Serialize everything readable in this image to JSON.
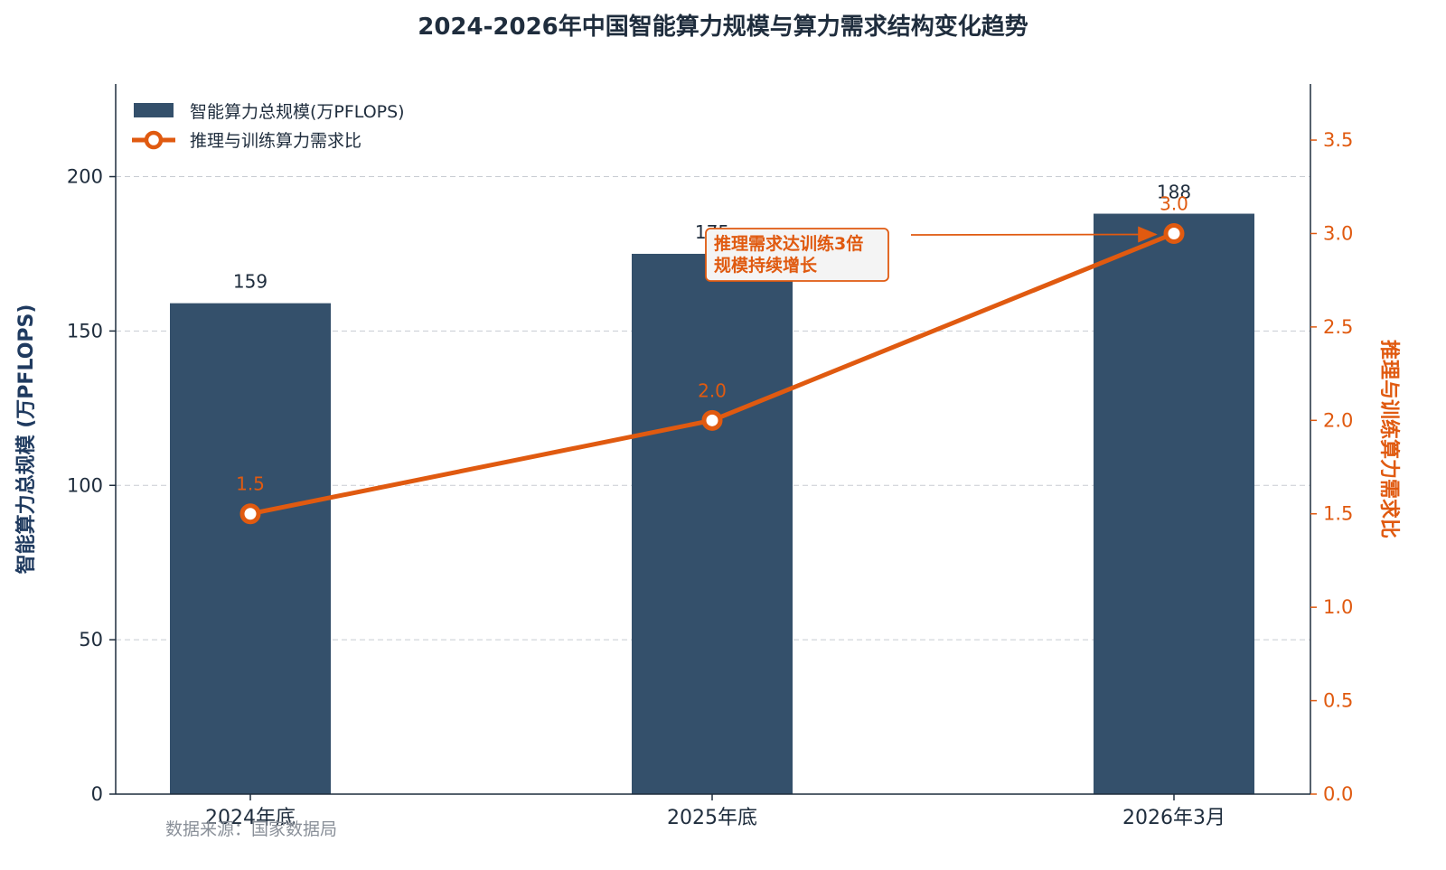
{
  "chart_data": {
    "type": "bar",
    "title": "2024-2026年中国智能算力规模与算力需求结构变化趋势",
    "categories": [
      "2024年底",
      "2025年底",
      "2026年3月"
    ],
    "series": [
      {
        "name": "智能算力总规模(万PFLOPS)",
        "type": "bar",
        "axis": "left",
        "color": "#34506b",
        "values": [
          159,
          175,
          188
        ]
      },
      {
        "name": "推理与训练算力需求比",
        "type": "line",
        "axis": "right",
        "color": "#e05a10",
        "values": [
          1.5,
          2.0,
          3.0
        ]
      }
    ],
    "ylabel": "智能算力总规模 (万PFLOPS)",
    "ylabel_right": "推理与训练算力需求比",
    "ylim": [
      0,
      230
    ],
    "ylim_right": [
      0,
      3.8
    ],
    "yticks": [
      0,
      50,
      100,
      150,
      200
    ],
    "yticks_right": [
      "0.0",
      "0.5",
      "1.0",
      "1.5",
      "2.0",
      "2.5",
      "3.0",
      "3.5"
    ],
    "grid": true,
    "legend_position": "top-left",
    "annotation": {
      "lines": [
        "推理需求达训练3倍",
        "规模持续增长"
      ],
      "points_to": "2026年3月"
    },
    "source": "数据来源：国家数据局"
  }
}
